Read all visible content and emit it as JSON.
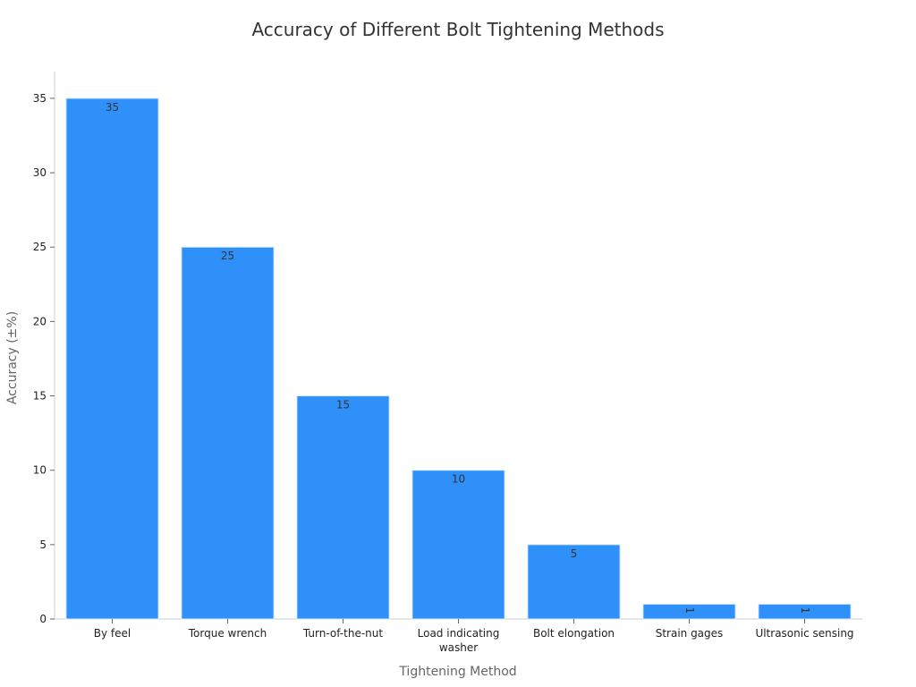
{
  "chart_data": {
    "type": "bar",
    "title": "Accuracy of Different Bolt Tightening Methods",
    "xlabel": "Tightening Method",
    "ylabel": "Accuracy (±%)",
    "categories": [
      "By feel",
      "Torque wrench",
      "Turn-of-the-nut",
      "Load indicating washer",
      "Bolt elongation",
      "Strain gages",
      "Ultrasonic sensing"
    ],
    "values": [
      35,
      25,
      15,
      10,
      5,
      1,
      1
    ],
    "data_labels": [
      "35",
      "25",
      "15",
      "10",
      "5",
      "1",
      "1"
    ],
    "yticks": [
      0,
      5,
      10,
      15,
      20,
      25,
      30,
      35
    ],
    "ylim": [
      0,
      36.8
    ],
    "grid": false,
    "legend": "none",
    "bar_color": "#2e90f8"
  }
}
